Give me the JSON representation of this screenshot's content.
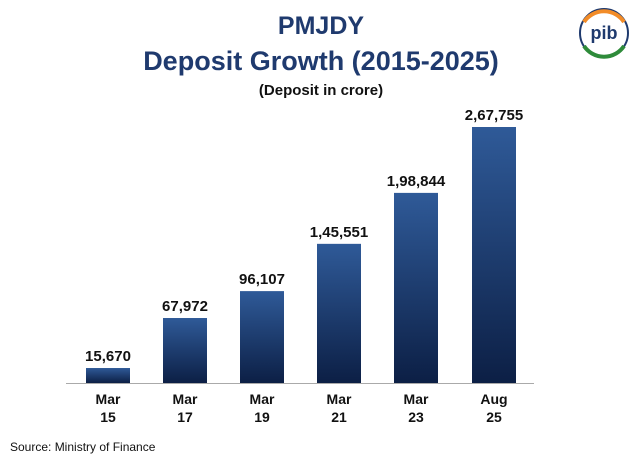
{
  "header": {
    "title": "PMJDY",
    "subtitle": "Deposit Growth (2015-2025)",
    "unit_note": "(Deposit in crore)"
  },
  "logo": {
    "icon": "pib-logo",
    "text": "pib"
  },
  "footer": {
    "source": "Source: Ministry of Finance"
  },
  "colors": {
    "bar_top": "#2f5a98",
    "bar_bottom": "#0c1f45",
    "title": "#1f3a6e",
    "axis": "#aaaaaa"
  },
  "chart_data": {
    "type": "bar",
    "title": "PMJDY Deposit Growth (2015-2025)",
    "ylabel": "(Deposit in crore)",
    "xlabel": "",
    "categories": [
      [
        "Mar",
        "15"
      ],
      [
        "Mar",
        "17"
      ],
      [
        "Mar",
        "19"
      ],
      [
        "Mar",
        "21"
      ],
      [
        "Mar",
        "23"
      ],
      [
        "Aug",
        "25"
      ]
    ],
    "values": [
      15670,
      67972,
      96107,
      145551,
      198844,
      267755
    ],
    "value_labels": [
      "15,670",
      "67,972",
      "96,107",
      "1,45,551",
      "1,98,844",
      "2,67,755"
    ],
    "ylim": [
      0,
      267755
    ],
    "grid": false,
    "legend": "none"
  }
}
